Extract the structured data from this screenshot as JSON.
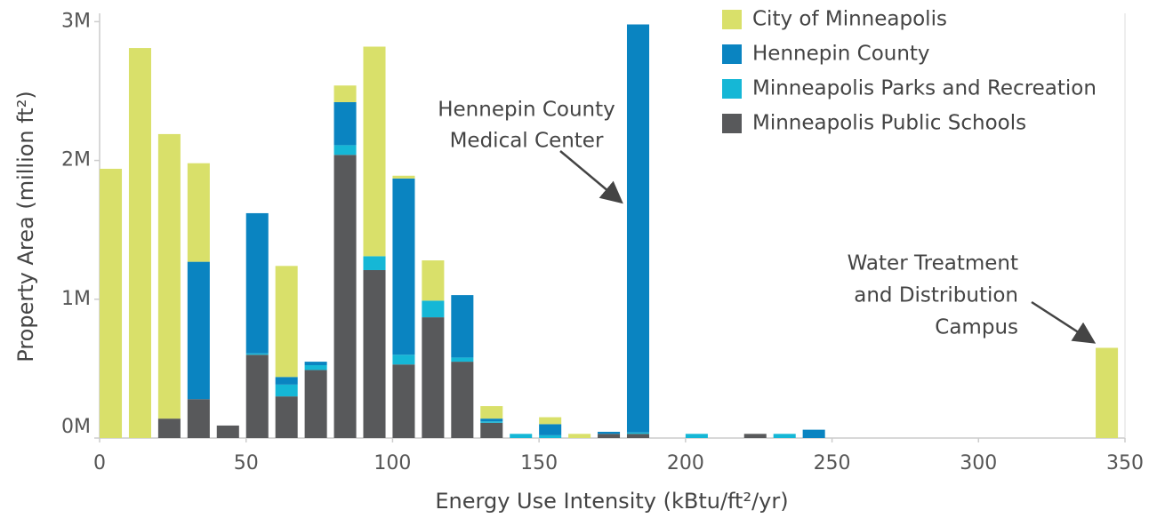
{
  "chart_data": {
    "type": "histogram",
    "x_label": "Energy Use Intensity (kBtu/ft²/yr)",
    "y_label": "Property Area (million ft²)",
    "bins": [
      0,
      10,
      20,
      30,
      40,
      50,
      60,
      70,
      80,
      90,
      100,
      110,
      120,
      130,
      140,
      150,
      160,
      170,
      180,
      190,
      200,
      210,
      220,
      230,
      240,
      250,
      260,
      270,
      280,
      290,
      300,
      310,
      320,
      330,
      340,
      350
    ],
    "series": [
      {
        "name": "City of Minneapolis",
        "color": "#d9e06a",
        "values": [
          1.94,
          2.81,
          2.05,
          0.71,
          0,
          0,
          0.8,
          0,
          0.12,
          1.51,
          0.02,
          0.29,
          0,
          0.09,
          0,
          0.05,
          0.03,
          0,
          0,
          0,
          0,
          0,
          0,
          0,
          0,
          0,
          0,
          0,
          0,
          0,
          0,
          0,
          0,
          0,
          0.65
        ]
      },
      {
        "name": "Hennepin County",
        "color": "#0a84c1",
        "values": [
          0,
          0,
          0,
          0.99,
          0,
          1.01,
          0.055,
          0.025,
          0.31,
          0,
          1.27,
          0,
          0.45,
          0.02,
          0,
          0.08,
          0,
          0.015,
          2.94,
          0,
          0,
          0,
          0,
          0,
          0.06,
          0,
          0,
          0,
          0,
          0,
          0,
          0,
          0,
          0,
          0
        ]
      },
      {
        "name": "Minneapolis Parks and Recreation",
        "color": "#15b7d6",
        "values": [
          0,
          0,
          0,
          0,
          0,
          0.01,
          0.085,
          0.035,
          0.07,
          0.1,
          0.07,
          0.12,
          0.03,
          0.01,
          0.03,
          0.02,
          0,
          0,
          0.01,
          0,
          0.03,
          0,
          0,
          0.03,
          0,
          0,
          0,
          0,
          0,
          0,
          0,
          0,
          0,
          0,
          0
        ]
      },
      {
        "name": "Minneapolis Public Schools",
        "color": "#58595b",
        "values": [
          0,
          0,
          0.14,
          0.28,
          0.09,
          0.6,
          0.3,
          0.49,
          2.04,
          1.21,
          0.53,
          0.87,
          0.55,
          0.11,
          0,
          0,
          0,
          0.03,
          0.03,
          0,
          0,
          0,
          0.03,
          0,
          0,
          0,
          0,
          0,
          0,
          0,
          0,
          0,
          0,
          0,
          0
        ]
      }
    ],
    "xlim": [
      0,
      350
    ],
    "xticks": [
      0,
      50,
      100,
      150,
      200,
      250,
      300,
      350
    ],
    "ylim": [
      0,
      3.06
    ],
    "yticks": [
      {
        "value": 0,
        "label": "0M"
      },
      {
        "value": 1,
        "label": "1M"
      },
      {
        "value": 2,
        "label": "2M"
      },
      {
        "value": 3,
        "label": "3M"
      }
    ],
    "legend": "upper right",
    "annotations": [
      {
        "lines": [
          "Hennepin County",
          "Medical Center"
        ]
      },
      {
        "lines": [
          "Water Treatment",
          "and Distribution",
          "Campus"
        ]
      }
    ]
  }
}
